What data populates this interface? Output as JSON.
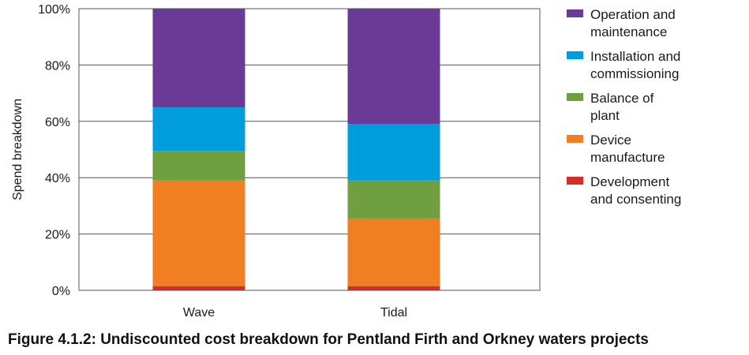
{
  "chart_data": {
    "type": "bar",
    "stacked": true,
    "categories": [
      "Wave",
      "Tidal"
    ],
    "ylabel": "Spend breakdown",
    "xlabel": "",
    "ylim": [
      0,
      100
    ],
    "yticks": [
      0,
      20,
      40,
      60,
      80,
      100
    ],
    "ytick_labels": [
      "0%",
      "20%",
      "40%",
      "60%",
      "80%",
      "100%"
    ],
    "grid": true,
    "legend_position": "right",
    "series": [
      {
        "name": "Development and consenting",
        "legend_lines": [
          "Development",
          "and consenting"
        ],
        "color": "#d12f27",
        "values": [
          1.5,
          1.5
        ]
      },
      {
        "name": "Device manufacture",
        "legend_lines": [
          "Device",
          "manufacture"
        ],
        "color": "#f07e23",
        "values": [
          37.5,
          24
        ]
      },
      {
        "name": "Balance of plant",
        "legend_lines": [
          "Balance of",
          "plant"
        ],
        "color": "#6f9f3f",
        "values": [
          10.5,
          13.5
        ]
      },
      {
        "name": "Installation and commissioning",
        "legend_lines": [
          "Installation and",
          "commissioning"
        ],
        "color": "#009ddc",
        "values": [
          15.5,
          20
        ]
      },
      {
        "name": "Operation and maintenance",
        "legend_lines": [
          "Operation and",
          "maintenance"
        ],
        "color": "#6a3a96",
        "values": [
          35,
          41
        ]
      }
    ]
  },
  "caption": "Figure 4.1.2: Undiscounted cost breakdown for Pentland Firth and Orkney waters projects"
}
